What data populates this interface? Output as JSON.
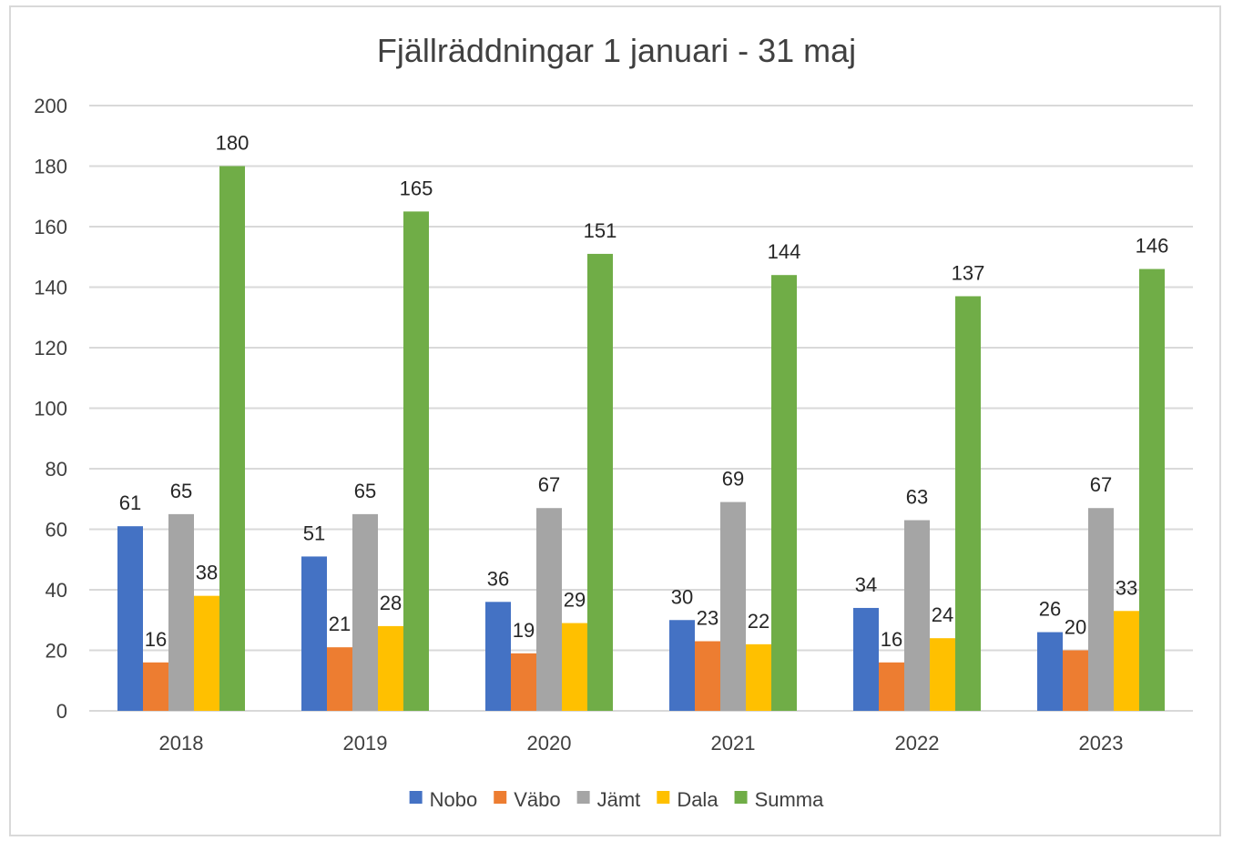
{
  "chart_data": {
    "type": "bar",
    "title": "Fjällräddningar 1 januari - 31 maj",
    "xlabel": "",
    "ylabel": "",
    "categories": [
      "2018",
      "2019",
      "2020",
      "2021",
      "2022",
      "2023"
    ],
    "series": [
      {
        "name": "Nobo",
        "color": "#4472C4",
        "values": [
          61,
          51,
          36,
          30,
          34,
          26
        ]
      },
      {
        "name": "Väbo",
        "color": "#ED7D31",
        "values": [
          16,
          21,
          19,
          23,
          16,
          20
        ]
      },
      {
        "name": "Jämt",
        "color": "#A5A5A5",
        "values": [
          65,
          65,
          67,
          69,
          63,
          67
        ]
      },
      {
        "name": "Dala",
        "color": "#FFC000",
        "values": [
          38,
          28,
          29,
          22,
          24,
          33
        ]
      },
      {
        "name": "Summa",
        "color": "#70AD47",
        "values": [
          180,
          165,
          151,
          144,
          137,
          146
        ]
      }
    ],
    "ylim": [
      0,
      200
    ],
    "yticks": [
      0,
      20,
      40,
      60,
      80,
      100,
      120,
      140,
      160,
      180,
      200
    ],
    "grid": true,
    "legend": "bottom",
    "data_labels": true
  }
}
